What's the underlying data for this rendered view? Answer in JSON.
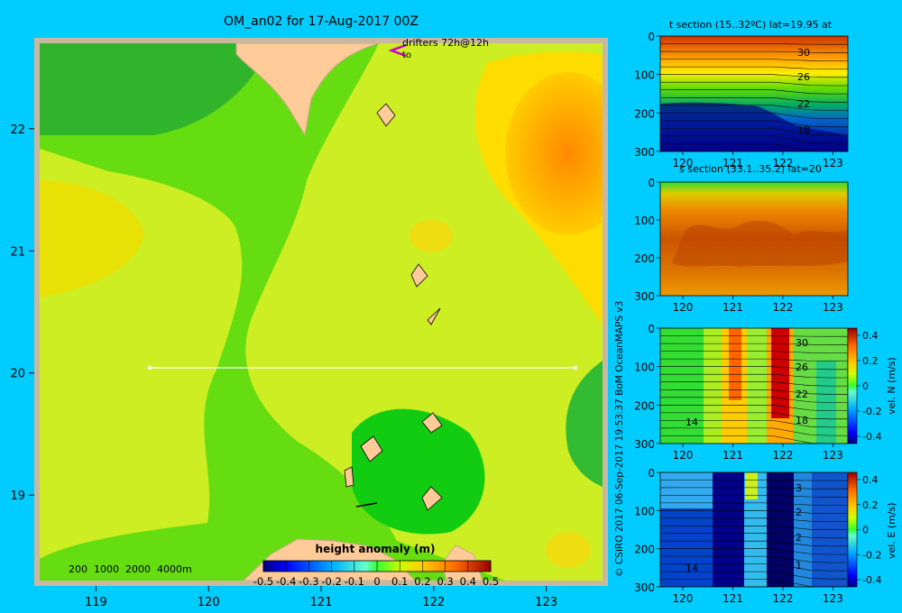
{
  "chart_data": [
    {
      "type": "heatmap",
      "title": "OM_an02 for 17-Aug-2017 00Z",
      "annotation": "drifters 72h@12h",
      "annotation2": "to",
      "depth_legend": "200  1000  2000  4000m",
      "x_ticks": [
        "119",
        "120",
        "121",
        "122",
        "123"
      ],
      "y_ticks": [
        "22",
        "21",
        "20",
        "19"
      ],
      "xlim": [
        118.5,
        123.5
      ],
      "ylim": [
        18.3,
        22.7
      ],
      "section_line": {
        "lat": 20,
        "lon_start": 119.5,
        "lon_end": 123.2
      },
      "colorbar": {
        "title": "height anomaly (m)",
        "ticks": [
          "-0.5",
          "-0.4",
          "-0.3",
          "-0.2",
          "-0.1",
          "0",
          "0.1",
          "0.2",
          "0.3",
          "0.4",
          "0.5"
        ],
        "range": [
          -0.5,
          0.5
        ]
      },
      "field_approx": {
        "description_values": [
          -0.05,
          0.0,
          0.05,
          0.1,
          0.15,
          0.2,
          0.25
        ]
      }
    },
    {
      "type": "heatmap",
      "title": "t section (15..32ºC) lat=19.95 at",
      "x_ticks": [
        "120",
        "121",
        "122",
        "123"
      ],
      "y_ticks": [
        "0",
        "100",
        "200",
        "300"
      ],
      "contour_labels": [
        "30",
        "26",
        "22",
        "18"
      ],
      "xlim": [
        119.5,
        123.3
      ],
      "ylim": [
        300,
        0
      ]
    },
    {
      "type": "heatmap",
      "title": "s section (33.1..35.2) lat=20",
      "x_ticks": [
        "120",
        "121",
        "122",
        "123"
      ],
      "y_ticks": [
        "0",
        "100",
        "200",
        "300"
      ],
      "xlim": [
        119.5,
        123.3
      ],
      "ylim": [
        300,
        0
      ]
    },
    {
      "type": "heatmap",
      "title": "",
      "x_ticks": [
        "120",
        "121",
        "122",
        "123"
      ],
      "y_ticks": [
        "0",
        "100",
        "200",
        "300"
      ],
      "contour_labels": [
        "30",
        "26",
        "22",
        "18",
        "14"
      ],
      "colorbar_label": "vel. N (m/s)",
      "colorbar_ticks": [
        "0.4",
        "0.2",
        "0",
        "-0.2",
        "-0.4"
      ],
      "range": [
        -0.4,
        0.4
      ]
    },
    {
      "type": "heatmap",
      "title": "",
      "x_ticks": [
        "120",
        "121",
        "122",
        "123"
      ],
      "y_ticks": [
        "0",
        "100",
        "200",
        "300"
      ],
      "contour_labels": [
        "3",
        "2",
        "2",
        "1",
        "14"
      ],
      "colorbar_label": "vel. E (m/s)",
      "colorbar_ticks": [
        "0.4",
        "0.2",
        "0",
        "-0.2",
        "-0.4"
      ],
      "range": [
        -0.4,
        0.4
      ]
    }
  ],
  "credit": "© CSIRO 2017   06-Sep-2017 19:53:37 BoM OceanMAPS v3",
  "colors": {
    "background": "#00ccff",
    "frame": "#c8b8a0",
    "land": "#ffcc99",
    "contour": "#000000",
    "section_line": "#ffffff",
    "drifter": "#cc00cc"
  }
}
